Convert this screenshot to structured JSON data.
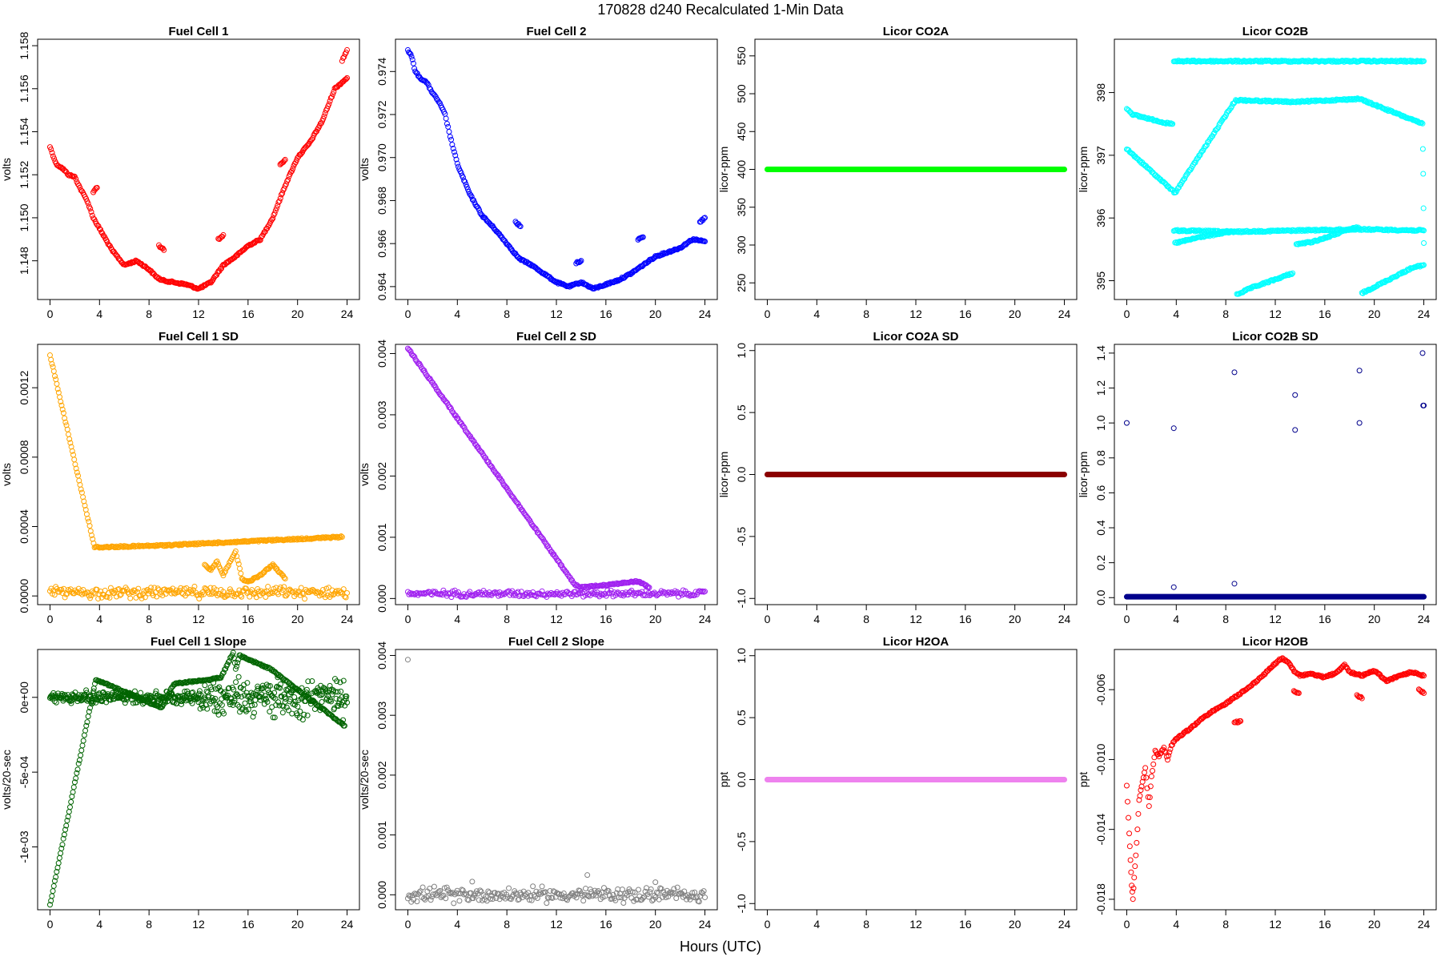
{
  "figure": {
    "title": "170828    d240    Recalculated 1-Min Data",
    "x_axis_label": "Hours (UTC)"
  },
  "chart_data": [
    {
      "type": "scatter",
      "title": "Fuel Cell 1",
      "ylabel": "volts",
      "color": "#ff0000",
      "xlim": [
        -1,
        25
      ],
      "ylim": [
        1.1462,
        1.1583
      ],
      "xticks": [
        0,
        4,
        8,
        12,
        16,
        20,
        24
      ],
      "yticks": [
        1.148,
        1.15,
        1.152,
        1.154,
        1.156,
        1.158
      ],
      "ytick_labels": [
        "1.148",
        "1.150",
        "1.152",
        "1.154",
        "1.156",
        "1.158"
      ],
      "series": [
        {
          "x": [
            0,
            0.5,
            1,
            1.5,
            2,
            2.5,
            3,
            3.5,
            4,
            5,
            6,
            7,
            8,
            8.5,
            9,
            10,
            11,
            12,
            13,
            14,
            15,
            16,
            17,
            18,
            19,
            20,
            21,
            22,
            23,
            24
          ],
          "y": [
            1.1533,
            1.1525,
            1.1523,
            1.152,
            1.1519,
            1.1513,
            1.1508,
            1.15,
            1.1495,
            1.1485,
            1.1478,
            1.148,
            1.1476,
            1.1473,
            1.1471,
            1.147,
            1.1469,
            1.1467,
            1.147,
            1.1478,
            1.1482,
            1.1487,
            1.149,
            1.15,
            1.1515,
            1.1528,
            1.1535,
            1.1545,
            1.156,
            1.1565
          ]
        },
        {
          "x": [
            3.5,
            3.8
          ],
          "y": [
            1.1512,
            1.1514
          ]
        },
        {
          "x": [
            8.8,
            9.2
          ],
          "y": [
            1.1487,
            1.1485
          ]
        },
        {
          "x": [
            13.6,
            14.0
          ],
          "y": [
            1.149,
            1.1492
          ]
        },
        {
          "x": [
            18.6,
            19.0
          ],
          "y": [
            1.1525,
            1.1527
          ]
        },
        {
          "x": [
            23.6,
            24.0
          ],
          "y": [
            1.1573,
            1.1578
          ]
        }
      ]
    },
    {
      "type": "scatter",
      "title": "Fuel Cell 2",
      "ylabel": "volts",
      "color": "#0000ff",
      "xlim": [
        -1,
        25
      ],
      "ylim": [
        0.9634,
        0.9755
      ],
      "xticks": [
        0,
        4,
        8,
        12,
        16,
        20,
        24
      ],
      "yticks": [
        0.964,
        0.966,
        0.968,
        0.97,
        0.972,
        0.974
      ],
      "ytick_labels": [
        "0.964",
        "0.966",
        "0.968",
        "0.970",
        "0.972",
        "0.974"
      ],
      "series": [
        {
          "x": [
            0,
            0.3,
            0.6,
            1,
            1.5,
            2,
            2.5,
            3,
            3.5,
            4,
            5,
            6,
            7,
            8,
            9,
            10,
            11,
            12,
            13,
            14,
            15,
            16,
            17,
            18,
            19,
            20,
            21,
            22,
            23,
            24
          ],
          "y": [
            0.975,
            0.9747,
            0.974,
            0.9737,
            0.9735,
            0.973,
            0.9726,
            0.972,
            0.9708,
            0.9697,
            0.9683,
            0.9673,
            0.9667,
            0.966,
            0.9653,
            0.965,
            0.9646,
            0.9642,
            0.964,
            0.9642,
            0.9639,
            0.9641,
            0.9643,
            0.9646,
            0.965,
            0.9654,
            0.9656,
            0.9658,
            0.9662,
            0.9661
          ]
        },
        {
          "x": [
            8.7,
            9.1
          ],
          "y": [
            0.967,
            0.9668
          ]
        },
        {
          "x": [
            13.6,
            14.0
          ],
          "y": [
            0.9651,
            0.9652
          ]
        },
        {
          "x": [
            18.6,
            19.0
          ],
          "y": [
            0.9662,
            0.9663
          ]
        },
        {
          "x": [
            23.6,
            24.0
          ],
          "y": [
            0.967,
            0.9672
          ]
        }
      ]
    },
    {
      "type": "scatter",
      "title": "Licor CO2A",
      "ylabel": "licor-ppm",
      "color": "#00ff00",
      "xlim": [
        -1,
        25
      ],
      "ylim": [
        228,
        572
      ],
      "xticks": [
        0,
        4,
        8,
        12,
        16,
        20,
        24
      ],
      "yticks": [
        250,
        300,
        350,
        400,
        450,
        500,
        550
      ],
      "ytick_labels": [
        "250",
        "300",
        "350",
        "400",
        "450",
        "500",
        "550"
      ],
      "series": [
        {
          "x": [
            0,
            24
          ],
          "y": [
            400,
            400
          ],
          "mode": "band"
        }
      ]
    },
    {
      "type": "scatter",
      "title": "Licor CO2B",
      "ylabel": "licor-ppm",
      "color": "#00ffff",
      "xlim": [
        -1,
        25
      ],
      "ylim": [
        394.7,
        398.85
      ],
      "xticks": [
        0,
        4,
        8,
        12,
        16,
        20,
        24
      ],
      "yticks": [
        395,
        396,
        397,
        398
      ],
      "ytick_labels": [
        "395",
        "396",
        "397",
        "398"
      ],
      "series": [
        {
          "x": [
            0,
            0.5,
            1,
            1.5,
            2,
            2.5,
            3,
            3.5,
            3.7
          ],
          "y": [
            397.75,
            397.65,
            397.62,
            397.6,
            397.57,
            397.55,
            397.52,
            397.5,
            397.5
          ]
        },
        {
          "x": [
            3.9,
            5,
            6,
            7,
            8,
            8.7
          ],
          "y": [
            395.6,
            395.65,
            395.7,
            395.73,
            395.77,
            395.78
          ]
        },
        {
          "x": [
            8.9,
            10,
            11,
            12,
            13.4
          ],
          "y": [
            394.78,
            394.88,
            394.95,
            395.02,
            395.12
          ]
        },
        {
          "x": [
            13.7,
            15,
            16,
            17,
            18,
            18.7
          ],
          "y": [
            395.58,
            395.62,
            395.68,
            395.75,
            395.82,
            395.85
          ]
        },
        {
          "x": [
            19.0,
            20,
            21,
            22,
            23,
            24
          ],
          "y": [
            394.8,
            394.9,
            395.0,
            395.1,
            395.2,
            395.25
          ]
        },
        {
          "x": [
            3.8,
            8.7,
            13.6,
            18.8,
            24.0
          ],
          "y": [
            398.5,
            398.5,
            398.5,
            398.5,
            398.5
          ]
        },
        {
          "x": [
            3.8,
            8.7,
            13.6,
            18.8,
            24.0
          ],
          "y": [
            395.8,
            395.78,
            395.8,
            395.82,
            395.8
          ]
        },
        {
          "x": [
            0,
            3.9,
            8.8,
            13.6,
            18.8,
            23.9,
            23.95,
            24.0
          ],
          "y": [
            397.1,
            396.4,
            397.88,
            397.85,
            397.9,
            397.5,
            396.7,
            395.6
          ]
        }
      ]
    },
    {
      "type": "scatter",
      "title": "Fuel Cell 1 SD",
      "ylabel": "volts",
      "color": "#ffa500",
      "xlim": [
        -1,
        25
      ],
      "ylim": [
        -5e-05,
        0.00145
      ],
      "xticks": [
        0,
        4,
        8,
        12,
        16,
        20,
        24
      ],
      "yticks": [
        0,
        0.0004,
        0.0008,
        0.0012
      ],
      "ytick_labels": [
        "0.0000",
        "0.0004",
        "0.0008",
        "0.0012"
      ],
      "series": [
        {
          "x": [
            0,
            3.6,
            8.7,
            23.6
          ],
          "y": [
            0.00139,
            0.00028,
            0.00029,
            0.00034
          ]
        },
        {
          "x": [
            12.5,
            13,
            13.5,
            14,
            14.5,
            15,
            15.5,
            16,
            17,
            18,
            18.5,
            19
          ],
          "y": [
            0.00018,
            0.00015,
            0.0002,
            0.00012,
            0.00019,
            0.00026,
            0.0001,
            8e-05,
            0.00012,
            0.00018,
            0.00014,
            0.0001
          ]
        },
        {
          "x": [
            0,
            24
          ],
          "y": [
            2e-05,
            2e-05
          ],
          "mode": "noiseband",
          "spread": 3e-05
        }
      ]
    },
    {
      "type": "scatter",
      "title": "Fuel Cell 2 SD",
      "ylabel": "volts",
      "color": "#a020f0",
      "xlim": [
        -1,
        25
      ],
      "ylim": [
        -0.0001,
        0.00415
      ],
      "xticks": [
        0,
        4,
        8,
        12,
        16,
        20,
        24
      ],
      "yticks": [
        0,
        0.001,
        0.002,
        0.003,
        0.004
      ],
      "ytick_labels": [
        "0.000",
        "0.001",
        "0.002",
        "0.003",
        "0.004"
      ],
      "series": [
        {
          "x": [
            0,
            13.5,
            14,
            18.6,
            19.5
          ],
          "y": [
            0.00409,
            0.00022,
            0.00018,
            0.00028,
            0.00018
          ]
        },
        {
          "x": [
            0,
            24
          ],
          "y": [
            8e-05,
            8e-05
          ],
          "mode": "noiseband",
          "spread": 5e-05
        }
      ]
    },
    {
      "type": "scatter",
      "title": "Licor CO2A SD",
      "ylabel": "licor-ppm",
      "color": "#8b0000",
      "xlim": [
        -1,
        25
      ],
      "ylim": [
        -1.05,
        1.05
      ],
      "xticks": [
        0,
        4,
        8,
        12,
        16,
        20,
        24
      ],
      "yticks": [
        -1,
        -0.5,
        0,
        0.5,
        1
      ],
      "ytick_labels": [
        "-1.0",
        "-0.5",
        "0.0",
        "0.5",
        "1.0"
      ],
      "series": [
        {
          "x": [
            0,
            24
          ],
          "y": [
            0,
            0
          ],
          "mode": "band"
        }
      ]
    },
    {
      "type": "scatter",
      "title": "Licor CO2B SD",
      "ylabel": "licor-ppm",
      "color": "#00008b",
      "xlim": [
        -1,
        25
      ],
      "ylim": [
        -0.04,
        1.45
      ],
      "xticks": [
        0,
        4,
        8,
        12,
        16,
        20,
        24
      ],
      "yticks": [
        0,
        0.2,
        0.4,
        0.6,
        0.8,
        1,
        1.2,
        1.4
      ],
      "ytick_labels": [
        "0.0",
        "0.2",
        "0.4",
        "0.6",
        "0.8",
        "1.0",
        "1.2",
        "1.4"
      ],
      "series": [
        {
          "x": [
            0,
            3.8,
            8.7,
            13.6,
            18.8,
            24.0,
            3.8,
            8.7,
            13.6,
            18.8,
            23.9,
            23.95
          ],
          "y": [
            1.0,
            0.97,
            1.29,
            0.96,
            1.3,
            1.1,
            0.06,
            0.08,
            1.16,
            1.0,
            1.4,
            1.1
          ]
        },
        {
          "x": [
            0,
            24
          ],
          "y": [
            0.005,
            0.005
          ],
          "mode": "band"
        }
      ]
    },
    {
      "type": "scatter",
      "title": "Fuel Cell 1 Slope",
      "ylabel": "volts/20-sec",
      "color": "#006400",
      "xlim": [
        -1,
        25
      ],
      "ylim": [
        -0.00142,
        0.00032
      ],
      "xticks": [
        0,
        4,
        8,
        12,
        16,
        20,
        24
      ],
      "yticks": [
        -0.001,
        -0.0005,
        0
      ],
      "ytick_labels": [
        "-1e-03",
        "-5e-04",
        "0e+00"
      ],
      "series": [
        {
          "x": [
            0,
            3.7,
            9,
            10,
            13.8,
            14.8,
            15,
            15.3,
            17.8,
            23.8
          ],
          "y": [
            -0.00139,
            0.00012,
            -7e-05,
            9e-05,
            0.00013,
            0.0003,
            0.00019,
            0.00028,
            0.00019,
            -0.00019
          ]
        },
        {
          "x": [
            0,
            12
          ],
          "y": [
            0,
            0
          ],
          "mode": "noiseband",
          "spread": 4e-05
        },
        {
          "x": [
            12,
            24
          ],
          "y": [
            0,
            0
          ],
          "mode": "noiseband",
          "spread": 0.00012
        }
      ]
    },
    {
      "type": "scatter",
      "title": "Fuel Cell 2 Slope",
      "ylabel": "volts/20-sec",
      "color": "#808080",
      "xlim": [
        -1,
        25
      ],
      "ylim": [
        -0.00025,
        0.0041
      ],
      "xticks": [
        0,
        4,
        8,
        12,
        16,
        20,
        24
      ],
      "yticks": [
        0,
        0.001,
        0.002,
        0.003,
        0.004
      ],
      "ytick_labels": [
        "0.000",
        "0.001",
        "0.002",
        "0.003",
        "0.004"
      ],
      "series": [
        {
          "x": [
            0,
            14.5,
            5.2,
            20
          ],
          "y": [
            0.00393,
            0.00033,
            0.00022,
            0.00021
          ]
        },
        {
          "x": [
            0,
            24
          ],
          "y": [
            0,
            0
          ],
          "mode": "noiseband",
          "spread": 0.00012
        }
      ]
    },
    {
      "type": "scatter",
      "title": "Licor H2OA",
      "ylabel": "ppt",
      "color": "#ee82ee",
      "xlim": [
        -1,
        25
      ],
      "ylim": [
        -1.05,
        1.05
      ],
      "xticks": [
        0,
        4,
        8,
        12,
        16,
        20,
        24
      ],
      "yticks": [
        -1,
        -0.5,
        0,
        0.5,
        1
      ],
      "ytick_labels": [
        "-1.0",
        "-0.5",
        "0.0",
        "0.5",
        "1.0"
      ],
      "series": [
        {
          "x": [
            0,
            24
          ],
          "y": [
            0,
            0
          ],
          "mode": "band"
        }
      ]
    },
    {
      "type": "scatter",
      "title": "Licor H2OB",
      "ylabel": "ppt",
      "color": "#ff0000",
      "xlim": [
        -1,
        25
      ],
      "ylim": [
        -0.0186,
        -0.0037
      ],
      "xticks": [
        0,
        4,
        8,
        12,
        16,
        20,
        24
      ],
      "yticks": [
        -0.018,
        -0.014,
        -0.01,
        -0.006
      ],
      "ytick_labels": [
        "-0.018",
        "-0.014",
        "-0.010",
        "-0.006"
      ],
      "series": [
        {
          "x": [
            0,
            0.2,
            0.3,
            0.4,
            0.5,
            0.6,
            0.8,
            1,
            1.2,
            1.5,
            1.8,
            2,
            2.3,
            2.6,
            3,
            3.3,
            3.6,
            4,
            5,
            6,
            7,
            8,
            9,
            10,
            11,
            12,
            12.5,
            13,
            13.6,
            14,
            15,
            16,
            17,
            17.6,
            18,
            19,
            20,
            21,
            22,
            23,
            24
          ],
          "y": [
            -0.0115,
            -0.0142,
            -0.0158,
            -0.0172,
            -0.018,
            -0.0168,
            -0.0148,
            -0.0123,
            -0.0115,
            -0.0105,
            -0.0127,
            -0.011,
            -0.0095,
            -0.0098,
            -0.0093,
            -0.01,
            -0.0092,
            -0.0088,
            -0.0083,
            -0.0077,
            -0.0072,
            -0.0068,
            -0.0063,
            -0.0058,
            -0.0052,
            -0.0045,
            -0.0042,
            -0.0044,
            -0.005,
            -0.0052,
            -0.0051,
            -0.0053,
            -0.005,
            -0.0046,
            -0.005,
            -0.0052,
            -0.0049,
            -0.0055,
            -0.0052,
            -0.005,
            -0.0052
          ]
        },
        {
          "x": [
            8.7,
            9.2
          ],
          "y": [
            -0.0079,
            -0.0078
          ]
        },
        {
          "x": [
            13.5,
            13.9
          ],
          "y": [
            -0.0061,
            -0.0062
          ]
        },
        {
          "x": [
            18.6,
            19.0
          ],
          "y": [
            -0.0063,
            -0.0065
          ]
        },
        {
          "x": [
            23.6,
            24.0
          ],
          "y": [
            -0.006,
            -0.0062
          ]
        }
      ]
    }
  ]
}
